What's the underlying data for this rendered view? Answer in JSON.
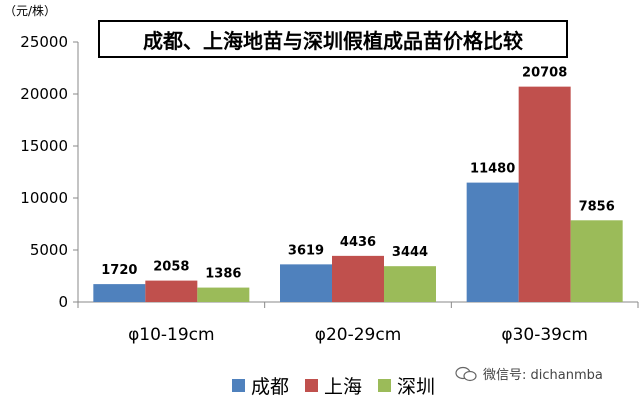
{
  "unit_label": "（元/株）",
  "watermark": {
    "text": "微信号: dichanmba"
  },
  "chart_data": {
    "type": "bar",
    "title": "成都、上海地苗与深圳假植成品苗价格比较",
    "xlabel": "",
    "ylabel": "（元/株）",
    "ylim": [
      0,
      25000
    ],
    "yticks": [
      0,
      5000,
      10000,
      15000,
      20000,
      25000
    ],
    "categories": [
      "φ10-19cm",
      "φ20-29cm",
      "φ30-39cm"
    ],
    "series": [
      {
        "name": "成都",
        "color": "#4F81BD",
        "values": [
          1720,
          3619,
          11480
        ]
      },
      {
        "name": "上海",
        "color": "#C0504D",
        "values": [
          2058,
          4436,
          20708
        ]
      },
      {
        "name": "深圳",
        "color": "#9BBB59",
        "values": [
          1386,
          3444,
          7856
        ]
      }
    ],
    "legend_position": "bottom",
    "grid": false
  }
}
